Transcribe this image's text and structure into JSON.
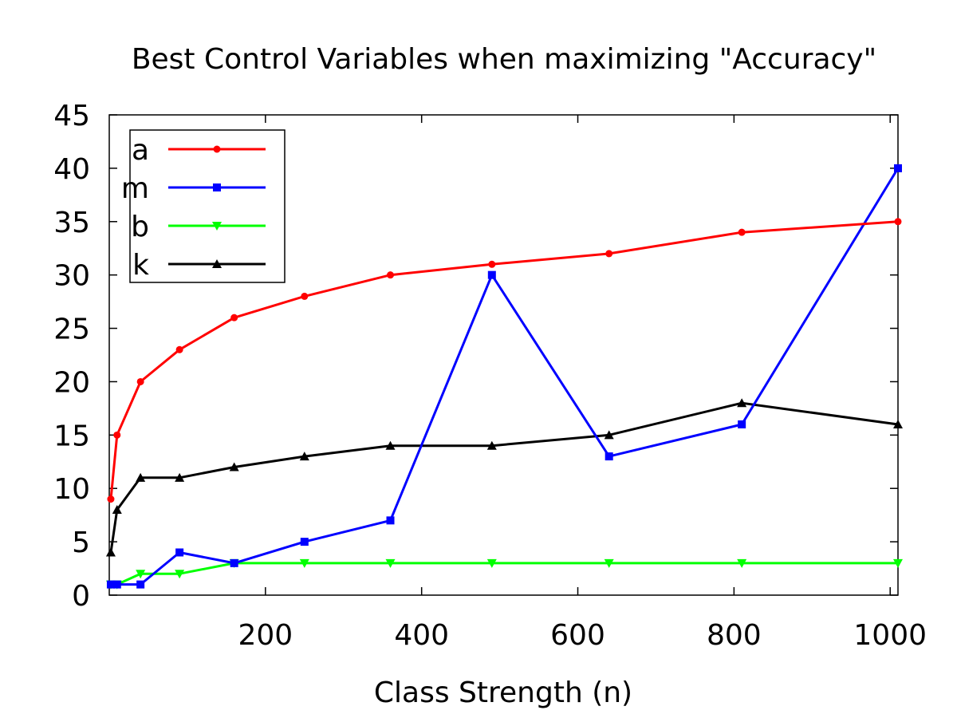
{
  "chart_data": {
    "type": "line",
    "title": "Best Control Variables when maximizing \"Accuracy\"",
    "xlabel": "Class Strength (n)",
    "ylabel": "",
    "xlim": [
      0,
      1010
    ],
    "ylim": [
      0,
      45
    ],
    "xticks": [
      200,
      400,
      600,
      800,
      1000
    ],
    "yticks": [
      0,
      5,
      10,
      15,
      20,
      25,
      30,
      35,
      40,
      45
    ],
    "grid": false,
    "legend_position": "top-left",
    "x": [
      2,
      10,
      40,
      90,
      160,
      250,
      360,
      490,
      640,
      810,
      1010
    ],
    "series": [
      {
        "name": "a",
        "color": "#ff0000",
        "marker": "circle",
        "values": [
          9,
          15,
          20,
          23,
          26,
          28,
          30,
          31,
          32,
          34,
          35
        ]
      },
      {
        "name": "m",
        "color": "#0000ff",
        "marker": "square",
        "values": [
          1,
          1,
          1,
          4,
          3,
          5,
          7,
          30,
          13,
          16,
          40
        ]
      },
      {
        "name": "b",
        "color": "#00ff00",
        "marker": "triangle-down",
        "values": [
          1,
          1,
          2,
          2,
          3,
          3,
          3,
          3,
          3,
          3,
          3
        ]
      },
      {
        "name": "k",
        "color": "#000000",
        "marker": "triangle-up",
        "values": [
          4,
          8,
          11,
          11,
          12,
          13,
          14,
          14,
          15,
          18,
          16
        ]
      }
    ]
  }
}
